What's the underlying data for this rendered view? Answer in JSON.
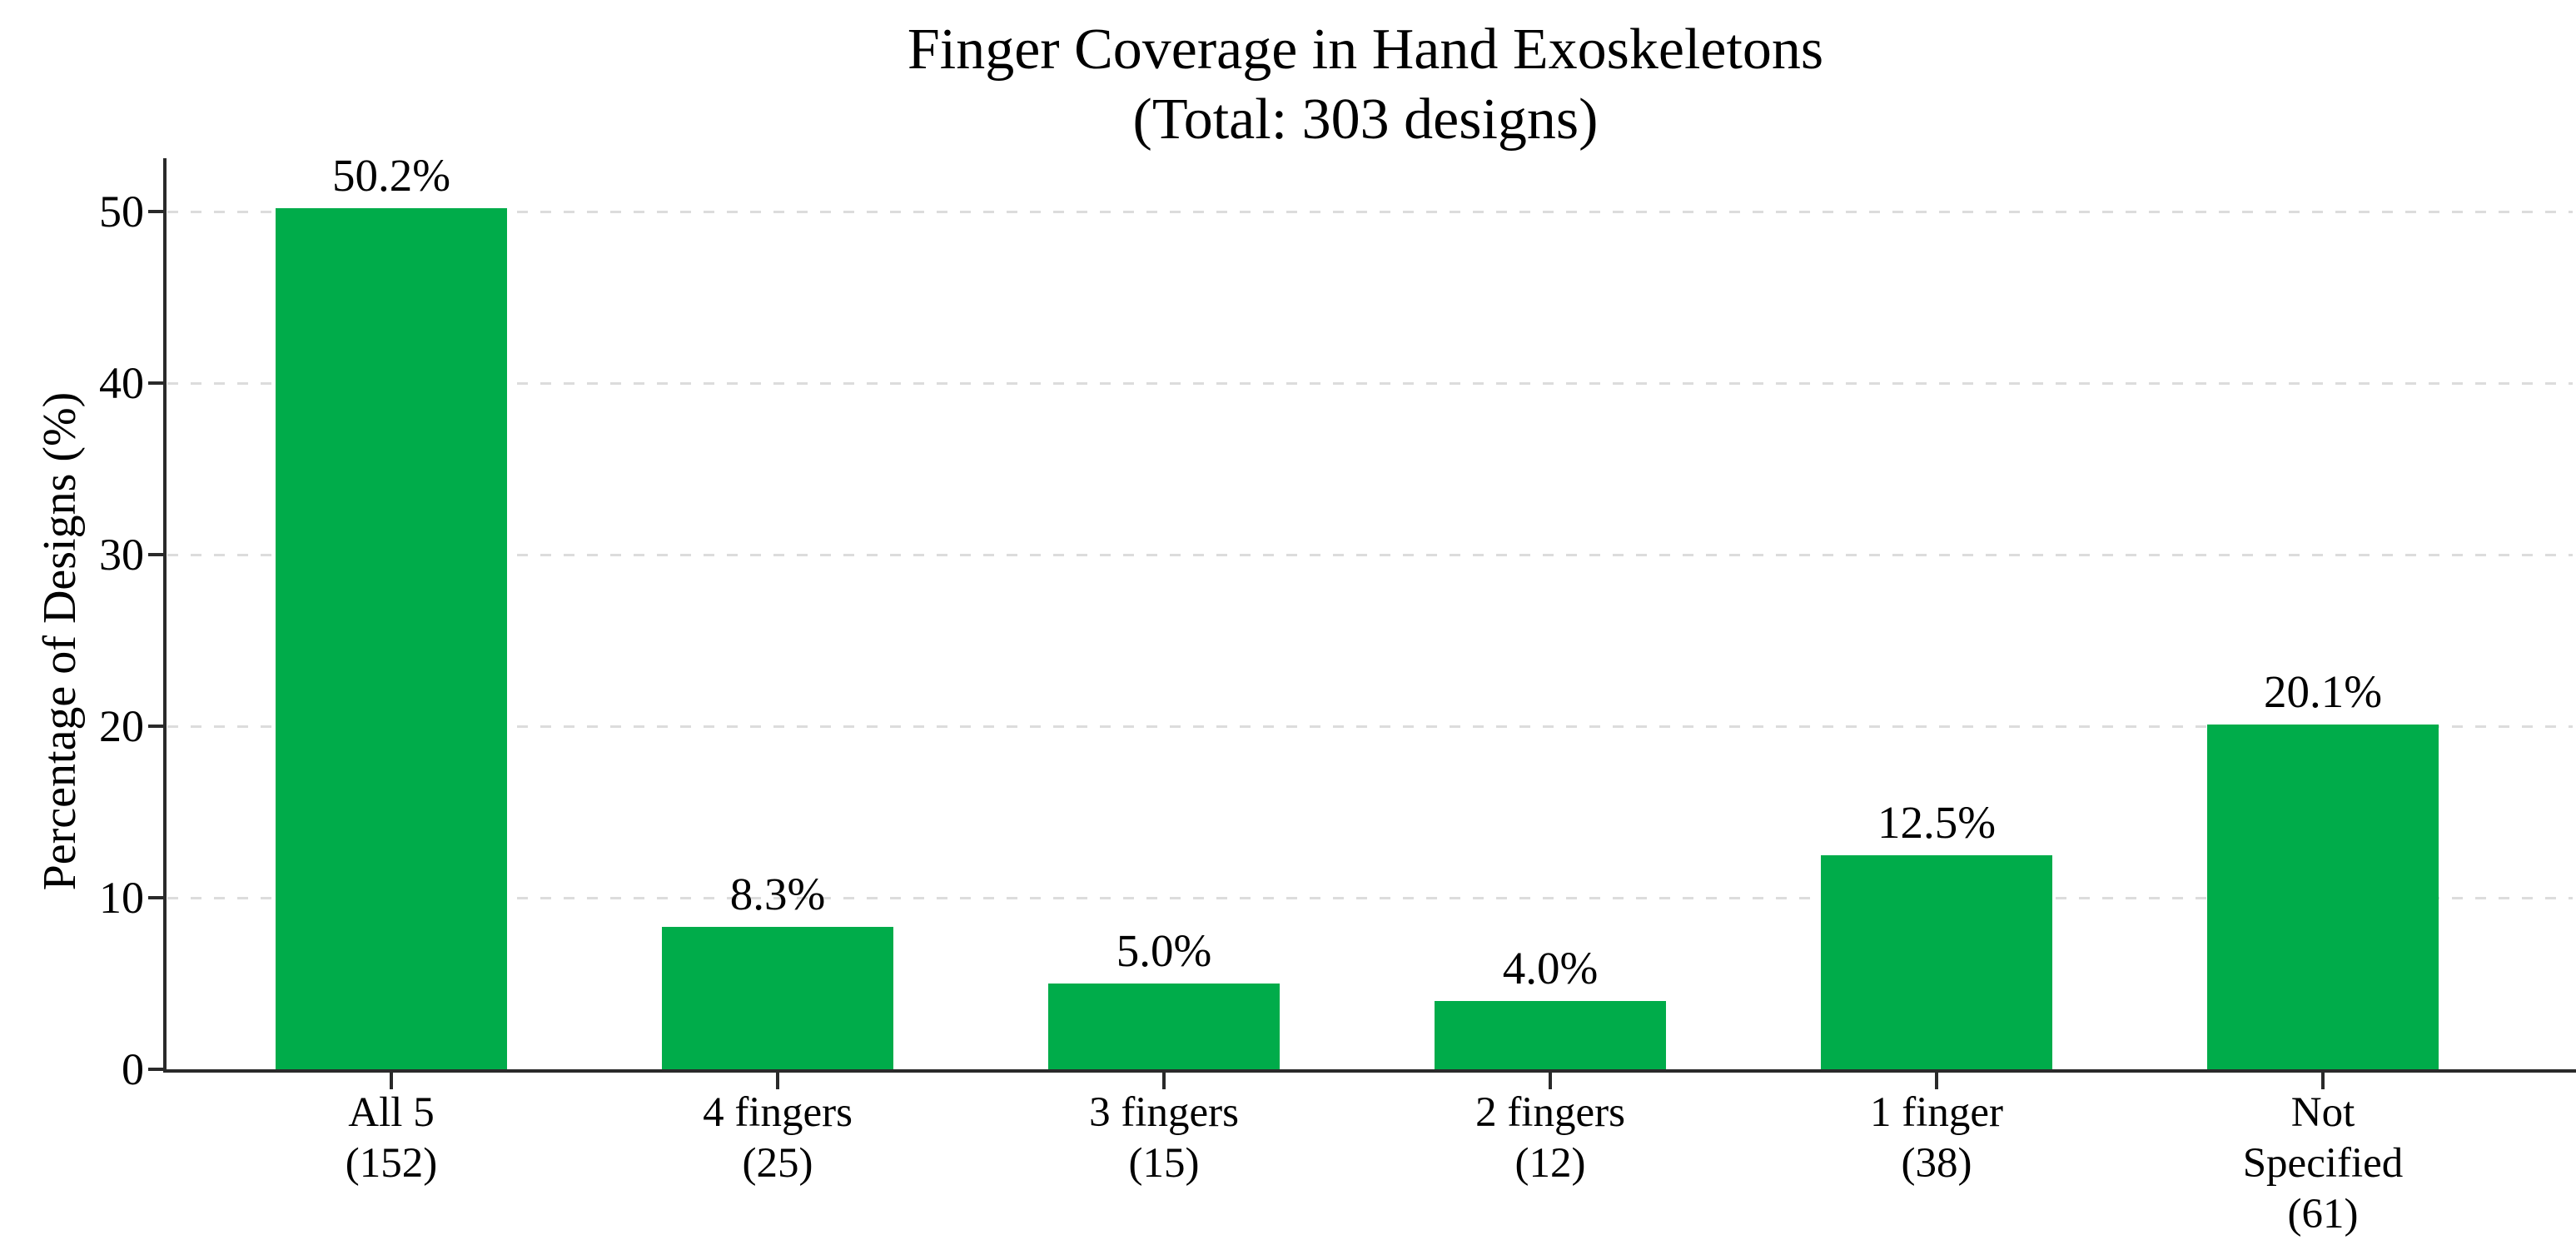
{
  "chart_data": {
    "type": "bar",
    "title": "Finger Coverage in Hand Exoskeletons",
    "subtitle": "(Total: 303 designs)",
    "ylabel": "Percentage of Designs (%)",
    "xlabel": "",
    "ylim": [
      0,
      53
    ],
    "yticks": [
      0,
      10,
      20,
      30,
      40,
      50
    ],
    "grid": "horizontal-dashed",
    "legend": "none",
    "categories": [
      [
        "All 5",
        "(152)"
      ],
      [
        "4 fingers",
        "(25)"
      ],
      [
        "3 fingers",
        "(15)"
      ],
      [
        "2 fingers",
        "(12)"
      ],
      [
        "1 finger",
        "(38)"
      ],
      [
        "Not",
        "Specified",
        "(61)"
      ]
    ],
    "values": [
      50.2,
      8.3,
      5.0,
      4.0,
      12.5,
      20.1
    ],
    "value_labels": [
      "50.2%",
      "8.3%",
      "5.0%",
      "4.0%",
      "12.5%",
      "20.1%"
    ],
    "counts": [
      152,
      25,
      15,
      12,
      38,
      61
    ],
    "total_designs": 303,
    "colors": {
      "bar": "#00AC4A",
      "gridline": "#dcdcdc",
      "spine": "#2a2a2a",
      "text": "#000000",
      "background": "#ffffff"
    }
  }
}
